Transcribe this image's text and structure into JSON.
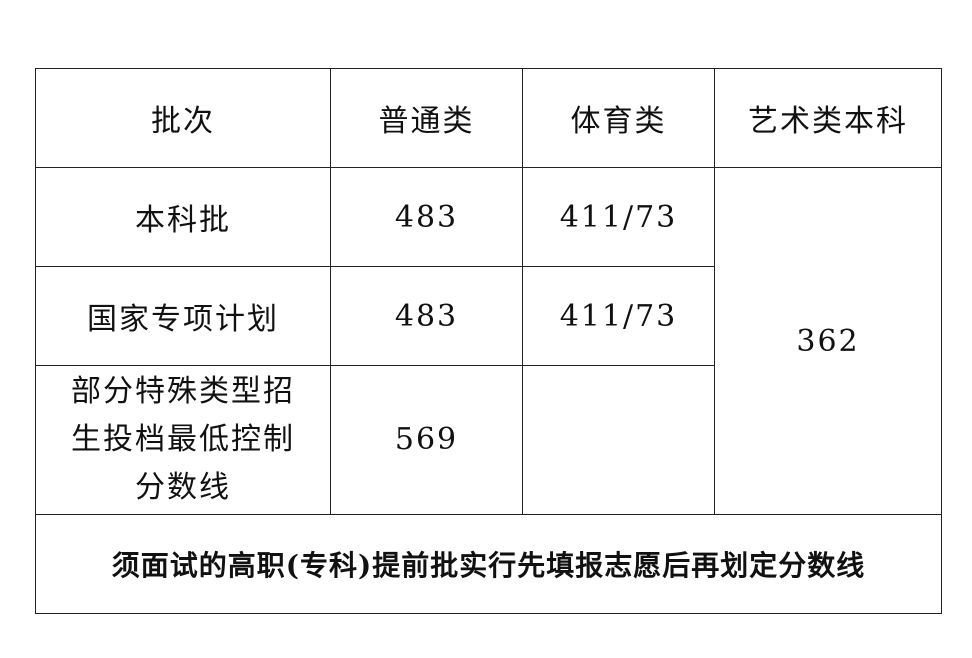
{
  "headers": [
    "批次",
    "普通类",
    "体育类",
    "艺术类本科"
  ],
  "rows": [
    {
      "batch": "本科批",
      "general": "483",
      "sports": "411/73"
    },
    {
      "batch": "国家专项计划",
      "general": "483",
      "sports": "411/73"
    },
    {
      "batch": "部分特殊类型招生投档最低控制分数线",
      "general": "569",
      "sports": ""
    }
  ],
  "art_score": "362",
  "footnote": "须面试的高职(专科)提前批实行先填报志愿后再划定分数线"
}
